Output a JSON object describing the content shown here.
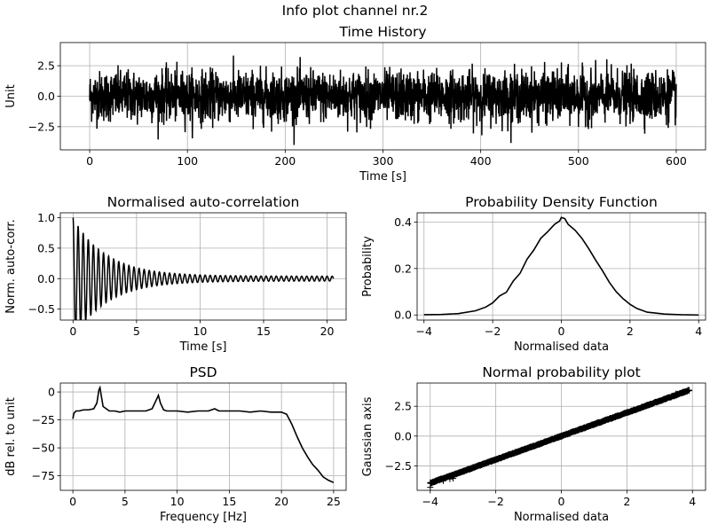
{
  "figure": {
    "suptitle": "Info plot channel nr.2",
    "line_color": "#000000",
    "grid_color": "#b0b0b0"
  },
  "chart_data": [
    {
      "id": "time-history",
      "type": "line",
      "title": "Time History",
      "xlabel": "Time [s]",
      "ylabel": "Unit",
      "xlim": [
        -30,
        630
      ],
      "ylim": [
        -4.4,
        4.4
      ],
      "xticks": [
        0,
        100,
        200,
        300,
        400,
        500,
        600
      ],
      "xtick_labels": [
        "0",
        "100",
        "200",
        "300",
        "400",
        "500",
        "600"
      ],
      "yticks": [
        -2.5,
        0,
        2.5
      ],
      "ytick_labels": [
        "−2.5",
        "0.0",
        "2.5"
      ],
      "grid": true,
      "signal": {
        "x_start": 0,
        "x_end": 600,
        "std": 1.0,
        "peak_max": 3.9,
        "peak_min": -4.0
      }
    },
    {
      "id": "autocorrelation",
      "type": "line",
      "title": "Normalised auto-correlation",
      "xlabel": "Time [s]",
      "ylabel": "Norm. auto-corr.",
      "xlim": [
        -1.0,
        21.5
      ],
      "ylim": [
        -0.68,
        1.08
      ],
      "xticks": [
        0,
        5,
        10,
        15,
        20
      ],
      "xtick_labels": [
        "0",
        "5",
        "10",
        "15",
        "20"
      ],
      "yticks": [
        -0.5,
        0,
        0.5,
        1.0
      ],
      "ytick_labels": [
        "−0.5",
        "0.0",
        "0.5",
        "1.0"
      ],
      "grid": true,
      "signal": {
        "x_end": 20.5,
        "oscillation_hz": 2.5,
        "first_min": -0.6,
        "residual_amplitude": 0.04
      }
    },
    {
      "id": "pdf",
      "type": "line",
      "title": "Probability Density Function",
      "xlabel": "Normalised data",
      "ylabel": "Probability",
      "xlim": [
        -4.2,
        4.2
      ],
      "ylim": [
        -0.022,
        0.44
      ],
      "xticks": [
        -4,
        -2,
        0,
        2,
        4
      ],
      "xtick_labels": [
        "−4",
        "−2",
        "0",
        "2",
        "4"
      ],
      "yticks": [
        0,
        0.2,
        0.4
      ],
      "ytick_labels": [
        "0.0",
        "0.2",
        "0.4"
      ],
      "grid": true,
      "x": [
        -4.0,
        -3.5,
        -3.0,
        -2.5,
        -2.2,
        -2.0,
        -1.8,
        -1.6,
        -1.4,
        -1.2,
        -1.0,
        -0.8,
        -0.6,
        -0.4,
        -0.2,
        -0.05,
        0.0,
        0.1,
        0.2,
        0.4,
        0.6,
        0.8,
        1.0,
        1.2,
        1.4,
        1.6,
        1.8,
        2.0,
        2.2,
        2.5,
        3.0,
        3.5,
        4.0
      ],
      "y": [
        0.001,
        0.002,
        0.006,
        0.018,
        0.034,
        0.052,
        0.082,
        0.098,
        0.146,
        0.18,
        0.24,
        0.28,
        0.33,
        0.358,
        0.39,
        0.405,
        0.42,
        0.415,
        0.39,
        0.365,
        0.33,
        0.285,
        0.236,
        0.19,
        0.14,
        0.1,
        0.07,
        0.046,
        0.028,
        0.012,
        0.004,
        0.001,
        0.0
      ]
    },
    {
      "id": "psd",
      "type": "line",
      "title": "PSD",
      "xlabel": "Frequency [Hz]",
      "ylabel": "dB rel. to unit",
      "xlim": [
        -1.2,
        26.2
      ],
      "ylim": [
        -88,
        8
      ],
      "xticks": [
        0,
        5,
        10,
        15,
        20,
        25
      ],
      "xtick_labels": [
        "0",
        "5",
        "10",
        "15",
        "20",
        "25"
      ],
      "yticks": [
        -75,
        -50,
        -25,
        0
      ],
      "ytick_labels": [
        "−75",
        "−50",
        "−25",
        "0"
      ],
      "grid": true,
      "x": [
        0.0,
        0.1,
        0.3,
        0.6,
        1.0,
        1.5,
        2.0,
        2.3,
        2.5,
        2.6,
        2.7,
        2.9,
        3.2,
        3.5,
        4.0,
        4.5,
        5.0,
        6.0,
        7.0,
        7.6,
        8.0,
        8.2,
        8.4,
        8.7,
        9.0,
        10.0,
        11.0,
        12.0,
        13.0,
        13.6,
        14.0,
        14.5,
        15.0,
        16.0,
        17.0,
        18.0,
        19.0,
        19.5,
        20.0,
        20.5,
        21.0,
        21.5,
        22.0,
        22.5,
        23.0,
        23.5,
        24.0,
        24.5,
        25.0
      ],
      "y": [
        -24,
        -19,
        -17,
        -17,
        -16,
        -16,
        -15,
        -10,
        2,
        4,
        -2,
        -13,
        -15,
        -17,
        -17,
        -18,
        -17,
        -17,
        -17,
        -15,
        -7,
        -3,
        -10,
        -16,
        -17,
        -17,
        -18,
        -17,
        -17,
        -15,
        -17,
        -17,
        -17,
        -17,
        -18,
        -17,
        -18,
        -18,
        -18,
        -20,
        -29,
        -40,
        -50,
        -58,
        -65,
        -70,
        -76,
        -79,
        -81
      ]
    },
    {
      "id": "normal-prob",
      "type": "scatter",
      "title": "Normal probability plot",
      "xlabel": "Normalised data",
      "ylabel": "Gaussian axis",
      "xlim": [
        -4.4,
        4.4
      ],
      "ylim": [
        -4.55,
        4.45
      ],
      "xticks": [
        -4,
        -2,
        0,
        2,
        4
      ],
      "xtick_labels": [
        "−4",
        "−2",
        "0",
        "2",
        "4"
      ],
      "yticks": [
        -2.5,
        0,
        2.5
      ],
      "ytick_labels": [
        "−2.5",
        "0.0",
        "2.5"
      ],
      "grid": true,
      "marker": "+",
      "x_range": [
        -4.0,
        3.9
      ],
      "tail_points": [
        [
          -4.0,
          -4.3
        ],
        [
          -3.6,
          -3.75
        ],
        [
          -3.4,
          -3.6
        ],
        [
          -3.3,
          -3.55
        ],
        [
          3.5,
          3.55
        ],
        [
          3.7,
          3.7
        ],
        [
          3.9,
          3.85
        ]
      ]
    }
  ]
}
